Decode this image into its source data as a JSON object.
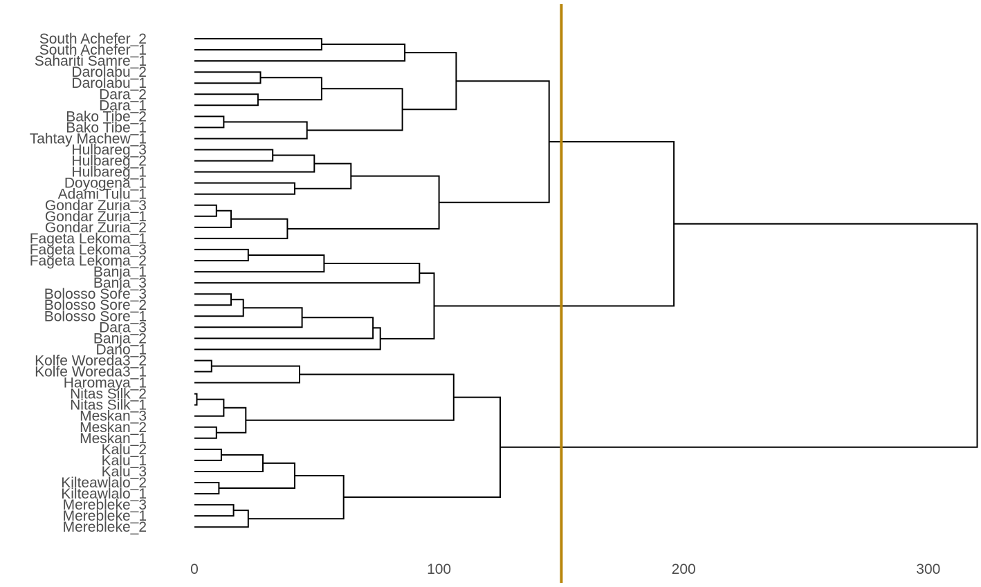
{
  "chart_data": {
    "type": "dendrogram",
    "orientation": "horizontal",
    "x_ticks": [
      0,
      100,
      200,
      300
    ],
    "xlim": [
      -2,
      323
    ],
    "cut_height": 150,
    "cut_line_color": "#B8860B",
    "leaves": [
      "South Achefer_2",
      "South Achefer_1",
      "Sahariti Samre_1",
      "Darolabu_2",
      "Darolabu_1",
      "Dara_2",
      "Dara_1",
      "Bako Tibe_2",
      "Bako Tibe_1",
      "Tahtay Machew_1",
      "Hulbareg_3",
      "Hulbareg_2",
      "Hulbareg_1",
      "Doyogena_1",
      "Adami Tulu_1",
      "Gondar Zuria_3",
      "Gondar Zuria_1",
      "Gondar Zuria_2",
      "Fageta Lekoma_1",
      "Fageta Lekoma_3",
      "Fageta Lekoma_2",
      "Banja_1",
      "Banja_3",
      "Bolosso Sore_3",
      "Bolosso Sore_2",
      "Bolosso Sore_1",
      "Dara_3",
      "Banja_2",
      "Dano_1",
      "Kolfe Woreda3_2",
      "Kolfe Woreda3_1",
      "Haromaya_1",
      "Nitas Silk_2",
      "Nitas Silk_1",
      "Meskan_3",
      "Meskan_2",
      "Meskan_1",
      "Kalu_2",
      "Kalu_1",
      "Kalu_3",
      "Kilteawlalo_2",
      "Kilteawlalo_1",
      "Merebleke_3",
      "Merebleke_1",
      "Merebleke_2"
    ],
    "merges": [
      {
        "left": "South Achefer_2",
        "right": "South Achefer_1",
        "height": 52,
        "id": "m1"
      },
      {
        "left": "m1",
        "right": "Sahariti Samre_1",
        "height": 86,
        "id": "m2"
      },
      {
        "left": "Darolabu_2",
        "right": "Darolabu_1",
        "height": 27,
        "id": "m3"
      },
      {
        "left": "Dara_2",
        "right": "Dara_1",
        "height": 26,
        "id": "m4"
      },
      {
        "left": "m3",
        "right": "m4",
        "height": 52,
        "id": "m5"
      },
      {
        "left": "Bako Tibe_2",
        "right": "Bako Tibe_1",
        "height": 12,
        "id": "m6"
      },
      {
        "left": "m6",
        "right": "Tahtay Machew_1",
        "height": 46,
        "id": "m7"
      },
      {
        "left": "m5",
        "right": "m7",
        "height": 85,
        "id": "m8"
      },
      {
        "left": "m2",
        "right": "m8",
        "height": 107,
        "id": "m9"
      },
      {
        "left": "Hulbareg_3",
        "right": "Hulbareg_2",
        "height": 32,
        "id": "m10"
      },
      {
        "left": "m10",
        "right": "Hulbareg_1",
        "height": 49,
        "id": "m11"
      },
      {
        "left": "Doyogena_1",
        "right": "Adami Tulu_1",
        "height": 41,
        "id": "m12"
      },
      {
        "left": "m11",
        "right": "m12",
        "height": 64,
        "id": "m13"
      },
      {
        "left": "Gondar Zuria_3",
        "right": "Gondar Zuria_1",
        "height": 9,
        "id": "m14"
      },
      {
        "left": "m14",
        "right": "Gondar Zuria_2",
        "height": 15,
        "id": "m15"
      },
      {
        "left": "m15",
        "right": "Fageta Lekoma_1",
        "height": 38,
        "id": "m16"
      },
      {
        "left": "m13",
        "right": "m16",
        "height": 100,
        "id": "m17"
      },
      {
        "left": "m9",
        "right": "m17",
        "height": 145,
        "id": "m18"
      },
      {
        "left": "Fageta Lekoma_3",
        "right": "Fageta Lekoma_2",
        "height": 22,
        "id": "m19"
      },
      {
        "left": "m19",
        "right": "Banja_1",
        "height": 53,
        "id": "m20"
      },
      {
        "left": "m20",
        "right": "Banja_3",
        "height": 92,
        "id": "m21"
      },
      {
        "left": "Bolosso Sore_3",
        "right": "Bolosso Sore_2",
        "height": 15,
        "id": "m22"
      },
      {
        "left": "m22",
        "right": "Bolosso Sore_1",
        "height": 20,
        "id": "m23"
      },
      {
        "left": "m23",
        "right": "Dara_3",
        "height": 44,
        "id": "m24"
      },
      {
        "left": "m24",
        "right": "Banja_2",
        "height": 73,
        "id": "m25"
      },
      {
        "left": "m25",
        "right": "Dano_1",
        "height": 76,
        "id": "m26"
      },
      {
        "left": "m21",
        "right": "m26",
        "height": 98,
        "id": "m27"
      },
      {
        "left": "m18",
        "right": "m27",
        "height": 196,
        "id": "m28"
      },
      {
        "left": "Kolfe Woreda3_2",
        "right": "Kolfe Woreda3_1",
        "height": 7,
        "id": "m29"
      },
      {
        "left": "m29",
        "right": "Haromaya_1",
        "height": 43,
        "id": "m30"
      },
      {
        "left": "Nitas Silk_2",
        "right": "Nitas Silk_1",
        "height": 1,
        "id": "m31"
      },
      {
        "left": "m31",
        "right": "Meskan_3",
        "height": 12,
        "id": "m32"
      },
      {
        "left": "Meskan_2",
        "right": "Meskan_1",
        "height": 9,
        "id": "m33"
      },
      {
        "left": "m32",
        "right": "m33",
        "height": 21,
        "id": "m34"
      },
      {
        "left": "m30",
        "right": "m34",
        "height": 106,
        "id": "m35"
      },
      {
        "left": "Kalu_2",
        "right": "Kalu_1",
        "height": 11,
        "id": "m36"
      },
      {
        "left": "m36",
        "right": "Kalu_3",
        "height": 28,
        "id": "m37"
      },
      {
        "left": "Kilteawlalo_2",
        "right": "Kilteawlalo_1",
        "height": 10,
        "id": "m38"
      },
      {
        "left": "m37",
        "right": "m38",
        "height": 41,
        "id": "m39"
      },
      {
        "left": "Merebleke_3",
        "right": "Merebleke_1",
        "height": 16,
        "id": "m40"
      },
      {
        "left": "m40",
        "right": "Merebleke_2",
        "height": 22,
        "id": "m41"
      },
      {
        "left": "m39",
        "right": "m41",
        "height": 61,
        "id": "m42"
      },
      {
        "left": "m35",
        "right": "m42",
        "height": 125,
        "id": "m43"
      },
      {
        "left": "m28",
        "right": "m43",
        "height": 320,
        "id": "m44"
      }
    ]
  }
}
